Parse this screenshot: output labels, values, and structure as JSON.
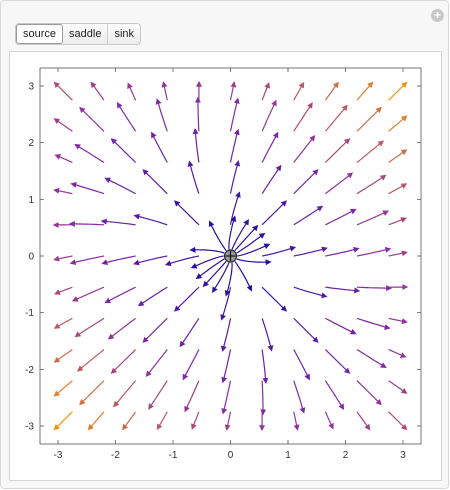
{
  "tabs": [
    {
      "label": "source",
      "active": true
    },
    {
      "label": "saddle",
      "active": false
    },
    {
      "label": "sink",
      "active": false
    }
  ],
  "add_button": "+",
  "chart_data": {
    "type": "stream",
    "title": "",
    "xlabel": "",
    "ylabel": "",
    "xlim": [
      -3,
      3
    ],
    "ylim": [
      -3,
      3
    ],
    "x_ticks": [
      "-3",
      "-2",
      "-1",
      "0",
      "1",
      "2",
      "3"
    ],
    "y_ticks": [
      "-3",
      "-2",
      "-1",
      "0",
      "1",
      "2",
      "3"
    ],
    "x_tick_values": [
      -3,
      -2,
      -1,
      0,
      1,
      2,
      3
    ],
    "y_tick_values": [
      -3,
      -2,
      -1,
      0,
      1,
      2,
      3
    ],
    "grid": false,
    "field": {
      "a": 1.0,
      "b": 0.2,
      "c": 0.2,
      "d": 1.0
    },
    "fixed_point": {
      "x": 0,
      "y": 0,
      "kind": "source"
    },
    "colors": {
      "low": "#1a0a9e",
      "mid": "#8a2aa8",
      "high": "#ff9a00"
    }
  }
}
